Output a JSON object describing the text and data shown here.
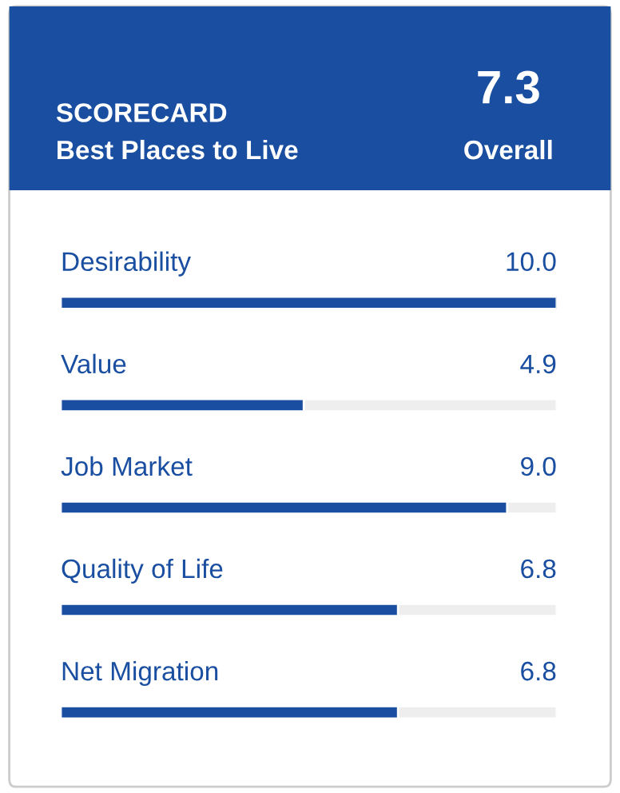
{
  "chart_data": {
    "type": "bar",
    "orientation": "horizontal",
    "title": "SCORECARD",
    "subtitle": "Best Places to Live",
    "annotations": [
      "7.3",
      "Overall"
    ],
    "categories": [
      "Desirability",
      "Value",
      "Job Market",
      "Quality of Life",
      "Net Migration"
    ],
    "values": [
      10.0,
      4.9,
      9.0,
      6.8,
      6.8
    ],
    "value_labels": [
      "10.0",
      "4.9",
      "9.0",
      "6.8",
      "6.8"
    ],
    "color": "#1a4ea0",
    "xlim": [
      0,
      10
    ],
    "legend": false,
    "tick_labels": false
  }
}
